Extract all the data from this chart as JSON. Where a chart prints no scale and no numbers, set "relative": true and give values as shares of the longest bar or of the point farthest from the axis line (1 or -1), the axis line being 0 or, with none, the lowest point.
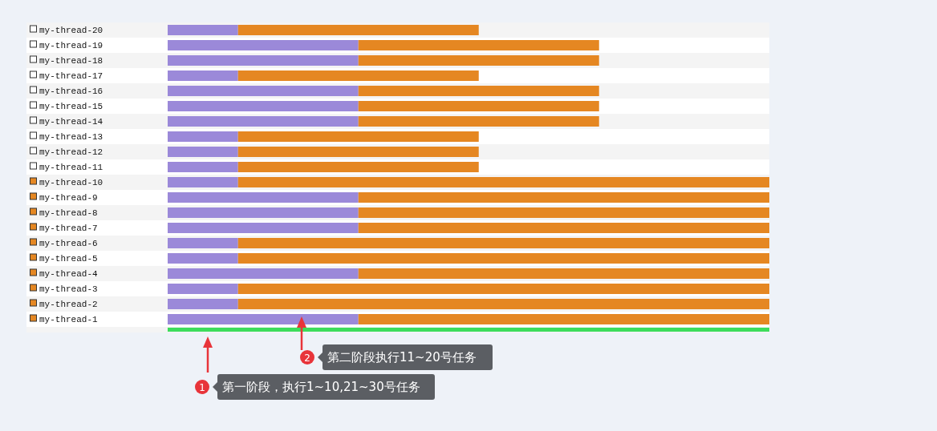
{
  "chart_data": {
    "type": "bar",
    "orientation": "horizontal",
    "stacked": true,
    "relative": true,
    "categories": [
      "my-thread-20",
      "my-thread-19",
      "my-thread-18",
      "my-thread-17",
      "my-thread-16",
      "my-thread-15",
      "my-thread-14",
      "my-thread-13",
      "my-thread-12",
      "my-thread-11",
      "my-thread-10",
      "my-thread-9",
      "my-thread-8",
      "my-thread-7",
      "my-thread-6",
      "my-thread-5",
      "my-thread-4",
      "my-thread-3",
      "my-thread-2",
      "my-thread-1",
      null
    ],
    "series": [
      {
        "color": "#9b89d9",
        "values": [
          0.117,
          0.317,
          0.317,
          0.117,
          0.317,
          0.317,
          0.317,
          0.117,
          0.117,
          0.117,
          0.117,
          0.317,
          0.317,
          0.317,
          0.117,
          0.117,
          0.317,
          0.117,
          0.117,
          0.317,
          null
        ]
      },
      {
        "color": "#e58722",
        "values": [
          0.4,
          0.4,
          0.4,
          0.4,
          0.4,
          0.4,
          0.4,
          0.4,
          0.4,
          0.4,
          0.883,
          0.683,
          0.683,
          0.683,
          0.883,
          0.883,
          0.683,
          0.883,
          0.883,
          0.683,
          null
        ]
      },
      {
        "color": "#3ddc5c",
        "values": [
          null,
          null,
          null,
          null,
          null,
          null,
          null,
          null,
          null,
          null,
          null,
          null,
          null,
          null,
          null,
          null,
          null,
          null,
          null,
          null,
          1
        ]
      }
    ],
    "annotations": [
      "1",
      "第一阶段，执行1~10,21~30号任务",
      "2",
      "第二阶段执行11~20号任务"
    ]
  }
}
